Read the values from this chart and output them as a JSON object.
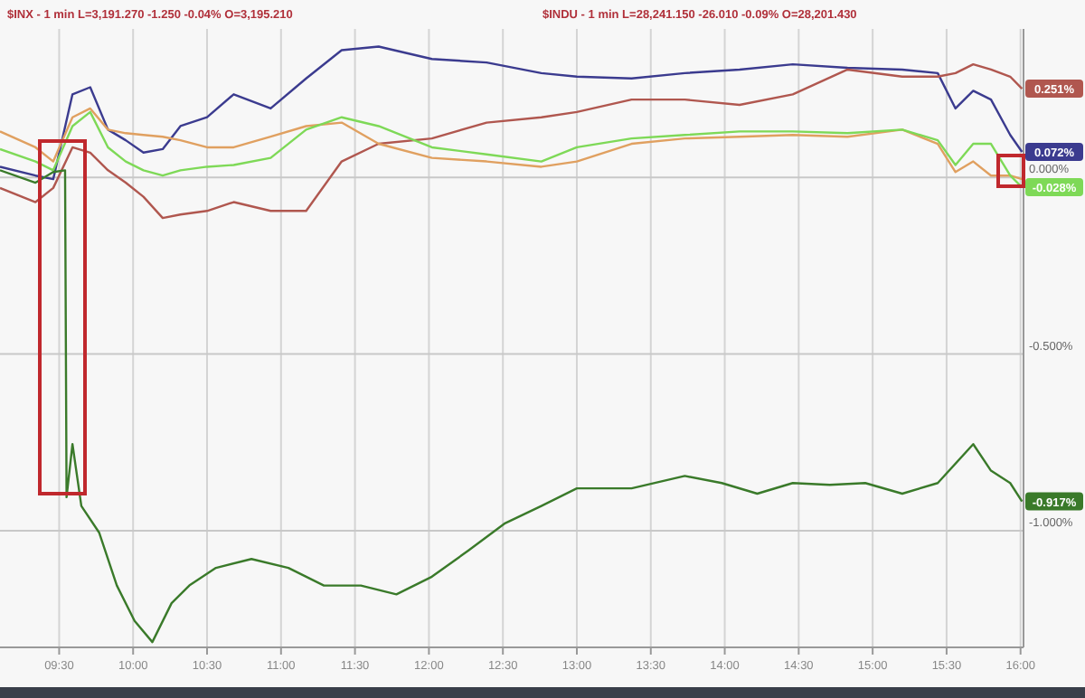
{
  "chart_data": {
    "type": "line",
    "title": "$INX - 1 min  L=3,191.270  -1.250  -0.04%  O=3,195.210",
    "subtitle": "$INDU - 1 min  L=28,241.150  -26.010  -0.09%  O=28,201.430",
    "x": [
      9.1,
      9.34,
      9.46,
      9.59,
      9.71,
      9.83,
      9.95,
      10.07,
      10.2,
      10.32,
      10.5,
      10.68,
      10.93,
      11.17,
      11.41,
      11.66,
      12.02,
      12.39,
      12.76,
      13.0,
      13.37,
      13.73,
      14.1,
      14.46,
      14.83,
      15.2,
      15.44,
      15.56,
      15.68,
      15.8,
      15.93,
      16.01
    ],
    "series": [
      {
        "color": "#3b3b8f",
        "values": [
          0.03,
          0.005,
          -0.005,
          0.235,
          0.255,
          0.135,
          0.105,
          0.07,
          0.08,
          0.145,
          0.17,
          0.235,
          0.195,
          0.28,
          0.36,
          0.37,
          0.335,
          0.325,
          0.295,
          0.285,
          0.28,
          0.295,
          0.305,
          0.32,
          0.31,
          0.305,
          0.295,
          0.195,
          0.245,
          0.22,
          0.12,
          0.072
        ]
      },
      {
        "color": "#b0574f",
        "values": [
          -0.03,
          -0.07,
          -0.03,
          0.085,
          0.07,
          0.02,
          -0.015,
          -0.055,
          -0.115,
          -0.105,
          -0.095,
          -0.07,
          -0.095,
          -0.095,
          0.045,
          0.095,
          0.11,
          0.155,
          0.17,
          0.185,
          0.22,
          0.22,
          0.205,
          0.235,
          0.305,
          0.285,
          0.285,
          0.295,
          0.32,
          0.305,
          0.285,
          0.251
        ]
      },
      {
        "color": "#e0a060",
        "values": [
          0.13,
          0.085,
          0.045,
          0.17,
          0.195,
          0.135,
          0.125,
          0.12,
          0.115,
          0.105,
          0.085,
          0.085,
          0.115,
          0.145,
          0.155,
          0.095,
          0.055,
          0.045,
          0.03,
          0.045,
          0.095,
          0.11,
          0.115,
          0.12,
          0.115,
          0.135,
          0.095,
          0.015,
          0.045,
          0.005,
          0.005,
          -0.005
        ]
      },
      {
        "color": "#7ed957",
        "values": [
          0.08,
          0.045,
          0.02,
          0.145,
          0.185,
          0.085,
          0.045,
          0.02,
          0.005,
          0.02,
          0.03,
          0.035,
          0.055,
          0.135,
          0.17,
          0.145,
          0.085,
          0.065,
          0.045,
          0.085,
          0.11,
          0.12,
          0.13,
          0.13,
          0.125,
          0.135,
          0.105,
          0.035,
          0.095,
          0.095,
          0.005,
          -0.028
        ]
      },
      {
        "color": "#3a7a2a",
        "x": [
          9.1,
          9.34,
          9.46,
          9.54,
          9.55,
          9.59,
          9.65,
          9.77,
          9.89,
          10.01,
          10.13,
          10.26,
          10.38,
          10.56,
          10.8,
          11.05,
          11.29,
          11.54,
          11.78,
          12.02,
          12.27,
          12.51,
          12.76,
          13.0,
          13.37,
          13.73,
          13.98,
          14.22,
          14.46,
          14.71,
          14.95,
          15.2,
          15.44,
          15.68,
          15.8,
          15.93,
          16.01
        ],
        "values": [
          0.02,
          -0.015,
          0.015,
          0.02,
          -0.905,
          -0.755,
          -0.93,
          -1.005,
          -1.155,
          -1.255,
          -1.315,
          -1.205,
          -1.155,
          -1.105,
          -1.08,
          -1.105,
          -1.155,
          -1.155,
          -1.18,
          -1.13,
          -1.055,
          -0.98,
          -0.93,
          -0.88,
          -0.88,
          -0.845,
          -0.865,
          -0.895,
          -0.865,
          -0.87,
          -0.865,
          -0.895,
          -0.865,
          -0.755,
          -0.83,
          -0.865,
          -0.917
        ]
      }
    ],
    "xlim": [
      9.1,
      16.02
    ],
    "xticks": [
      {
        "value": 9.5,
        "label": "09:30"
      },
      {
        "value": 10,
        "label": "10:00"
      },
      {
        "value": 10.5,
        "label": "10:30"
      },
      {
        "value": 11,
        "label": "11:00"
      },
      {
        "value": 11.5,
        "label": "11:30"
      },
      {
        "value": 12,
        "label": "12:00"
      },
      {
        "value": 12.5,
        "label": "12:30"
      },
      {
        "value": 13,
        "label": "13:00"
      },
      {
        "value": 13.5,
        "label": "13:30"
      },
      {
        "value": 14,
        "label": "14:00"
      },
      {
        "value": 14.5,
        "label": "14:30"
      },
      {
        "value": 15,
        "label": "15:00"
      },
      {
        "value": 15.5,
        "label": "15:30"
      },
      {
        "value": 16,
        "label": "16:00"
      }
    ],
    "ylim": [
      -1.33,
      0.42
    ],
    "yticks": [
      {
        "value": 0,
        "label": "0.000%"
      },
      {
        "value": -0.5,
        "label": "-0.500%"
      },
      {
        "value": -1,
        "label": "-1.000%"
      }
    ],
    "annotations": [
      {
        "text": "0.251%",
        "y": 0.251
      },
      {
        "text": "0.072%",
        "y": 0.072
      },
      {
        "text": "-0.028%",
        "y": -0.028
      },
      {
        "text": "-0.917%",
        "y": -0.917
      }
    ],
    "grid": true,
    "marker": "none",
    "line_style": "solid"
  }
}
